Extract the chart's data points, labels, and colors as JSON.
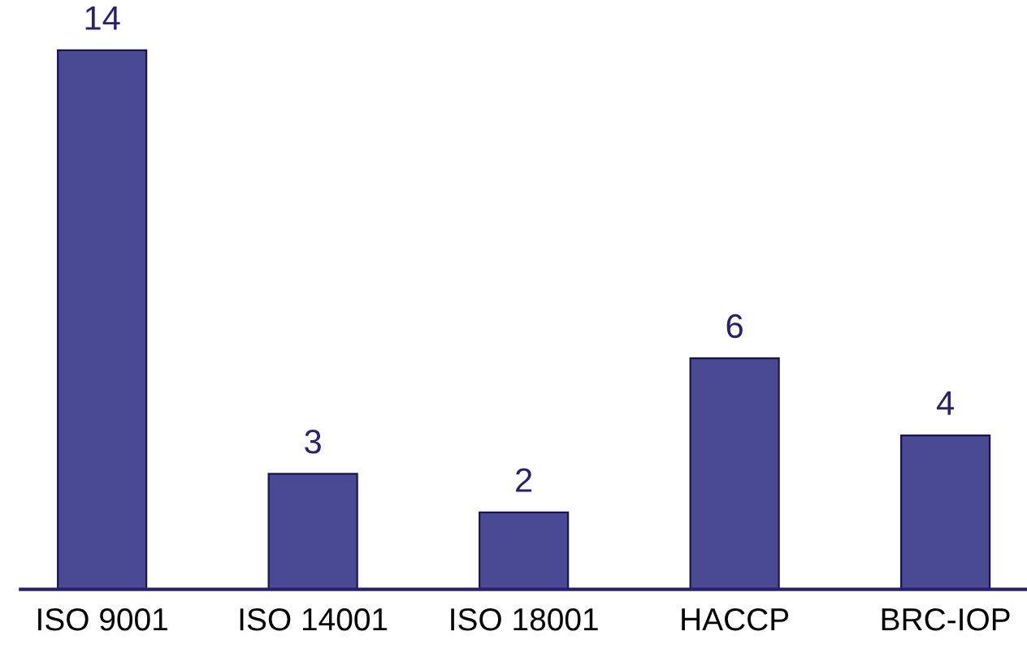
{
  "chart_data": {
    "type": "bar",
    "categories": [
      "ISO 9001",
      "ISO 14001",
      "ISO 18001",
      "HACCP",
      "BRC-IOP"
    ],
    "values": [
      14,
      3,
      2,
      6,
      4
    ],
    "color": "#4a4a94",
    "data_labels": true,
    "grid": false,
    "legend": false
  }
}
